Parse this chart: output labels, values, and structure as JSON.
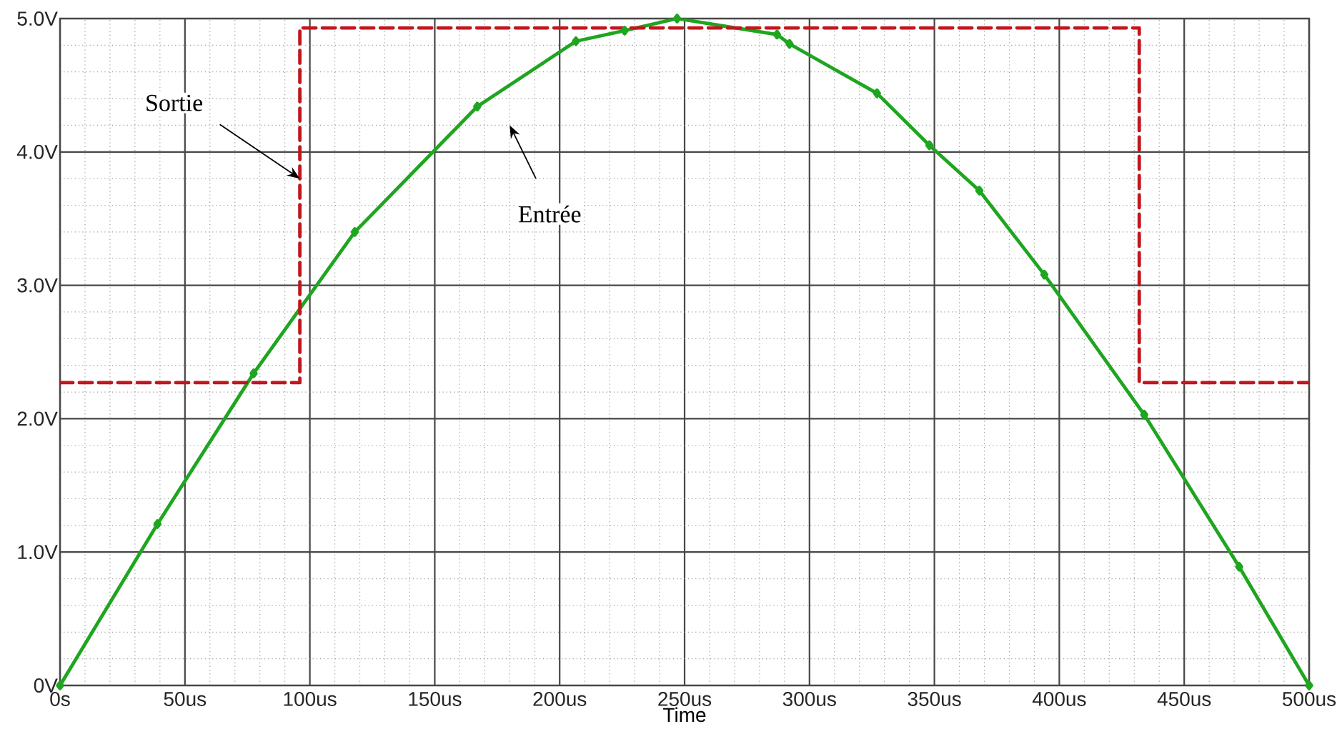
{
  "chart_data": {
    "type": "line",
    "xlabel": "Time",
    "series": [
      {
        "type": "line",
        "color": "#1fa51f",
        "marker": "diamond",
        "line_style": "solid",
        "x": [
          0,
          39,
          77.5,
          118,
          167,
          206.5,
          226,
          247,
          287,
          292,
          327,
          348,
          368,
          394,
          434,
          472,
          500
        ],
        "values": [
          0,
          1.21,
          2.34,
          3.4,
          4.34,
          4.83,
          4.91,
          5.0,
          4.88,
          4.81,
          4.44,
          4.05,
          3.71,
          3.08,
          2.03,
          0.89,
          0
        ]
      },
      {
        "type": "step",
        "color": "#c0161c",
        "marker": "none",
        "line_style": "dashed",
        "x": [
          0,
          96,
          432,
          500
        ],
        "values": [
          2.27,
          4.93,
          2.27,
          2.27
        ]
      }
    ],
    "annotations": [
      {
        "text": "Sortie",
        "x": 96,
        "y": 3.8
      },
      "Entrée"
    ],
    "xlim": [
      0,
      500
    ],
    "ylim": [
      0,
      5
    ],
    "xticks": [
      {
        "value": 0,
        "label": "0s"
      },
      {
        "value": 50,
        "label": "50us"
      },
      {
        "value": 100,
        "label": "100us"
      },
      {
        "value": 150,
        "label": "150us"
      },
      {
        "value": 200,
        "label": "200us"
      },
      {
        "value": 250,
        "label": "250us"
      },
      {
        "value": 300,
        "label": "300us"
      },
      {
        "value": 350,
        "label": "350us"
      },
      {
        "value": 400,
        "label": "400us"
      },
      {
        "value": 450,
        "label": "450us"
      },
      {
        "value": 500,
        "label": "500us"
      }
    ],
    "yticks": [
      {
        "value": 0,
        "label": "0V"
      },
      {
        "value": 1,
        "label": "1.0V"
      },
      {
        "value": 2,
        "label": "2.0V"
      },
      {
        "value": 3,
        "label": "3.0V"
      },
      {
        "value": 4,
        "label": "4.0V"
      },
      {
        "value": 5,
        "label": "5.0V"
      }
    ],
    "grid": true
  }
}
